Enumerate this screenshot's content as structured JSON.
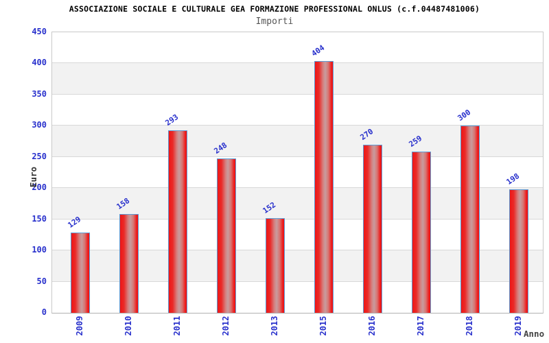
{
  "header": {
    "title": "ASSOCIAZIONE SOCIALE E CULTURALE GEA FORMAZIONE PROFESSIONAL ONLUS (c.f.04487481006)",
    "subtitle": "Importi"
  },
  "chart_data": {
    "type": "bar",
    "title": "ASSOCIAZIONE SOCIALE E CULTURALE GEA FORMAZIONE PROFESSIONAL ONLUS (c.f.04487481006)",
    "subtitle": "Importi",
    "xlabel": "Anno",
    "ylabel": "Euro",
    "categories": [
      "2009",
      "2010",
      "2011",
      "2012",
      "2013",
      "2015",
      "2016",
      "2017",
      "2018",
      "2019"
    ],
    "values": [
      129,
      158,
      293,
      248,
      152,
      404,
      270,
      259,
      300,
      198
    ],
    "ylim": [
      0,
      450
    ],
    "ytick_step": 50,
    "yticks": [
      0,
      50,
      100,
      150,
      200,
      250,
      300,
      350,
      400,
      450
    ],
    "legend": "none",
    "grid": "alternating horizontal gray bands every 50 units with light gridlines",
    "colors": {
      "bar_fill_red": "#ee1616",
      "bar_fill_light_center": "#c89c9e",
      "bar_border": "#5b9bd5",
      "tick_text_blue": "#2830cc",
      "band_gray": "#f2f2f2",
      "grid_line": "#d8d8d8",
      "plot_border": "#c9c9c9",
      "title_text": "#000000",
      "subtitle_text": "#555555",
      "axis_title_text": "#333333"
    }
  }
}
